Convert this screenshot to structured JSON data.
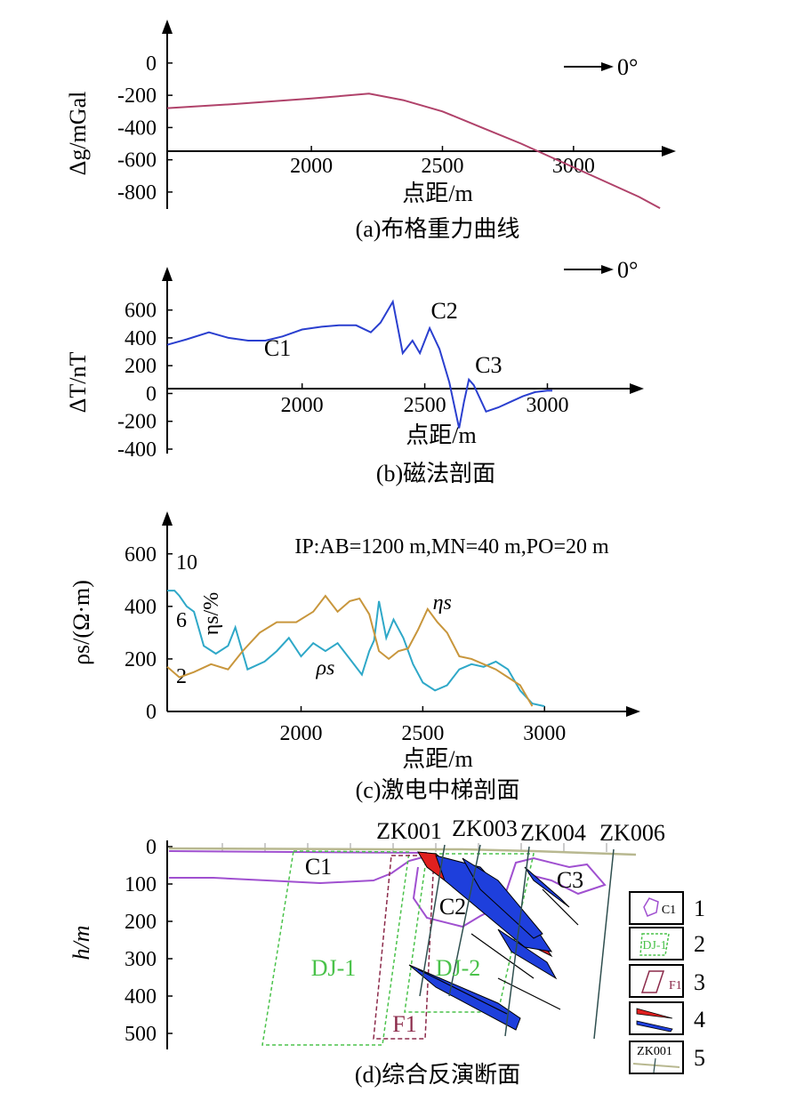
{
  "chart_data": [
    {
      "id": "gravity",
      "type": "line",
      "caption": "(a)布格重力曲线",
      "xlabel": "点距/m",
      "ylabel": "Δg/mGal",
      "xticks": [
        2000,
        2500,
        3000
      ],
      "yticks": [
        0,
        -200,
        -400,
        -600,
        -800
      ],
      "xlim": [
        1450,
        3350
      ],
      "ylim": [
        -850,
        60
      ],
      "arrow_label": "0°",
      "series": [
        {
          "color": "#b0426a",
          "x": [
            1450,
            1700,
            2000,
            2220,
            2350,
            2500,
            2650,
            2800,
            2950,
            3100,
            3250,
            3330
          ],
          "y": [
            -280,
            -255,
            -220,
            -190,
            -230,
            -300,
            -400,
            -500,
            -610,
            -720,
            -830,
            -900
          ]
        }
      ]
    },
    {
      "id": "magnetic",
      "type": "line",
      "caption": "(b)磁法剖面",
      "xlabel": "点距/m",
      "ylabel": "ΔT/nT",
      "xticks": [
        2000,
        2500,
        3000
      ],
      "yticks": [
        600,
        400,
        200,
        0,
        -200,
        -400
      ],
      "xlim": [
        1450,
        3350
      ],
      "ylim": [
        -400,
        700
      ],
      "arrow_label": "0°",
      "annotations": [
        {
          "text": "C1",
          "x": 1900,
          "y": 270
        },
        {
          "text": "C2",
          "x": 2580,
          "y": 540
        },
        {
          "text": "C3",
          "x": 2760,
          "y": 150
        }
      ],
      "series": [
        {
          "color": "#2a3fcf",
          "x": [
            1450,
            1530,
            1620,
            1700,
            1780,
            1850,
            1920,
            2000,
            2080,
            2150,
            2220,
            2280,
            2320,
            2370,
            2410,
            2450,
            2480,
            2520,
            2560,
            2600,
            2640,
            2660,
            2680,
            2700,
            2750,
            2800,
            2850,
            2900,
            2950,
            3000,
            3020
          ],
          "y": [
            350,
            390,
            440,
            400,
            380,
            380,
            410,
            460,
            480,
            490,
            490,
            440,
            510,
            660,
            290,
            380,
            290,
            470,
            320,
            80,
            -250,
            -60,
            100,
            60,
            -130,
            -100,
            -60,
            -20,
            10,
            20,
            20
          ]
        }
      ]
    },
    {
      "id": "ip",
      "type": "line",
      "caption": "(c)激电中梯剖面",
      "title": "IP:AB=1200 m,MN=40 m,PO=20 m",
      "xlabel": "点距/m",
      "ylabel": "ρs/(Ω·m)",
      "ylabel2": "ηs/%",
      "xticks": [
        2000,
        2500,
        3000
      ],
      "yticks": [
        600,
        400,
        200,
        0
      ],
      "y2ticks": [
        10,
        6,
        2
      ],
      "xlim": [
        1450,
        3350
      ],
      "ylim": [
        0,
        650
      ],
      "annotations": [
        {
          "text": "ηs",
          "x": 2580,
          "y": 390
        },
        {
          "text": "ρs",
          "x": 2100,
          "y": 140
        }
      ],
      "series": [
        {
          "name": "ρs",
          "color": "#2fa8c8",
          "x": [
            1450,
            1480,
            1500,
            1530,
            1560,
            1600,
            1650,
            1700,
            1730,
            1780,
            1850,
            1900,
            1950,
            2000,
            2050,
            2100,
            2150,
            2200,
            2250,
            2280,
            2300,
            2320,
            2350,
            2380,
            2420,
            2460,
            2500,
            2550,
            2600,
            2650,
            2700,
            2750,
            2800,
            2850,
            2900,
            2950,
            3000
          ],
          "y": [
            460,
            460,
            440,
            400,
            380,
            250,
            220,
            250,
            320,
            160,
            190,
            230,
            280,
            210,
            260,
            230,
            260,
            200,
            140,
            230,
            270,
            420,
            280,
            350,
            280,
            180,
            110,
            80,
            100,
            160,
            180,
            170,
            190,
            160,
            80,
            30,
            20
          ]
        },
        {
          "name": "ηs",
          "color": "#c8963c",
          "x": [
            1450,
            1500,
            1560,
            1630,
            1700,
            1760,
            1830,
            1900,
            1980,
            2050,
            2100,
            2150,
            2200,
            2240,
            2280,
            2320,
            2360,
            2400,
            2440,
            2480,
            2520,
            2560,
            2600,
            2650,
            2700,
            2750,
            2800,
            2850,
            2900,
            2950
          ],
          "y": [
            170,
            130,
            150,
            180,
            160,
            230,
            300,
            340,
            340,
            380,
            440,
            380,
            420,
            430,
            370,
            230,
            200,
            230,
            240,
            310,
            390,
            340,
            300,
            210,
            200,
            180,
            160,
            130,
            100,
            20
          ]
        }
      ]
    },
    {
      "id": "section",
      "type": "diagram",
      "caption": "(d)综合反演断面",
      "ylabel": "h/m",
      "yticks": [
        0,
        100,
        200,
        300,
        400,
        500
      ],
      "boreholes": [
        "ZK001",
        "ZK003",
        "ZK004",
        "ZK006"
      ],
      "labels": [
        "C1",
        "C2",
        "C3",
        "DJ-1",
        "DJ-2",
        "F1"
      ],
      "legend": [
        {
          "key": "C1",
          "num": "1"
        },
        {
          "key": "DJ-1",
          "num": "2"
        },
        {
          "key": "F1",
          "num": "3"
        },
        {
          "key": "",
          "num": "4"
        },
        {
          "key": "ZK001",
          "num": "5"
        }
      ],
      "colors": {
        "contour": "#a050d0",
        "dj": "#4ac24a",
        "fault": "#8b2a4a",
        "ore_blue": "#1e3fdc",
        "ore_red": "#e02020",
        "topo": "#b8b890",
        "hole": "#2f4f4f"
      }
    }
  ]
}
